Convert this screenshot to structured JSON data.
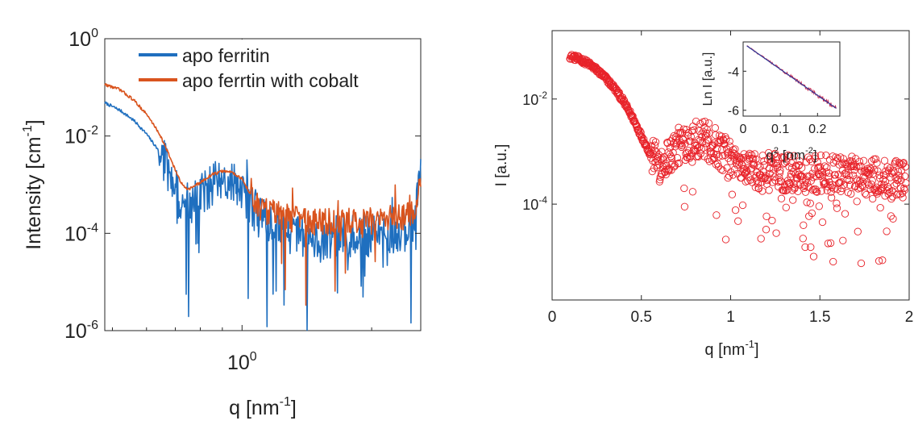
{
  "chart_data": [
    {
      "type": "line",
      "xscale": "log",
      "yscale": "log",
      "xlim": [
        0.48,
        2.6
      ],
      "ylim": [
        1e-06,
        1
      ],
      "xticks": [
        {
          "value": 1,
          "base": "10",
          "exp": "0"
        }
      ],
      "yticks": [
        {
          "value": 1,
          "base": "10",
          "exp": "0"
        },
        {
          "value": 0.01,
          "base": "10",
          "exp": "-2"
        },
        {
          "value": 0.0001,
          "base": "10",
          "exp": "-4"
        },
        {
          "value": 1e-06,
          "base": "10",
          "exp": "-6"
        }
      ],
      "xlabel": {
        "text": "q [nm",
        "sup": "-1",
        "close": "]"
      },
      "ylabel": {
        "text": "Intensity [cm",
        "sup": "-1",
        "close": "]"
      },
      "legend_position": "top-right",
      "series": [
        {
          "name": "apo ferritin",
          "color": "#1f6fbf",
          "noise_start_x": 0.64,
          "noise_spread": 0.9,
          "x": [
            0.48,
            0.52,
            0.56,
            0.6,
            0.64,
            0.67,
            0.7,
            0.72,
            0.75,
            0.8,
            0.85,
            0.9,
            0.95,
            1.0,
            1.05,
            1.1,
            1.2,
            1.3,
            1.4,
            1.5,
            1.6,
            1.8,
            2.0,
            2.2,
            2.4,
            2.5,
            2.6
          ],
          "y": [
            0.048,
            0.034,
            0.021,
            0.011,
            0.005,
            0.0022,
            0.0009,
            0.0004,
            0.0003,
            0.0006,
            0.001,
            0.0012,
            0.0011,
            0.0008,
            0.0004,
            0.0002,
            0.00015,
            0.0001,
            8e-05,
            7e-05,
            8e-05,
            9e-05,
            9e-05,
            0.0001,
            0.00012,
            0.0002,
            0.002
          ]
        },
        {
          "name": "apo ferrtin with cobalt",
          "color": "#d9541e",
          "noise_start_x": 1.05,
          "noise_spread": 0.55,
          "x": [
            0.48,
            0.52,
            0.56,
            0.6,
            0.64,
            0.67,
            0.7,
            0.72,
            0.75,
            0.8,
            0.85,
            0.9,
            0.95,
            1.0,
            1.05,
            1.1,
            1.2,
            1.3,
            1.4,
            1.5,
            1.6,
            1.8,
            2.0,
            2.2,
            2.4,
            2.5,
            2.6
          ],
          "y": [
            0.115,
            0.09,
            0.055,
            0.028,
            0.012,
            0.005,
            0.002,
            0.0011,
            0.0008,
            0.0011,
            0.0016,
            0.0019,
            0.0018,
            0.0013,
            0.0006,
            0.0003,
            0.00025,
            0.0002,
            0.00018,
            0.00017,
            0.00017,
            0.00018,
            0.00018,
            0.0002,
            0.00022,
            0.0003,
            0.0009
          ]
        }
      ]
    },
    {
      "type": "scatter",
      "xscale": "linear",
      "yscale": "log",
      "xlim": [
        0,
        2
      ],
      "ylim": [
        1.5e-06,
        0.2
      ],
      "xticks": [
        {
          "value": 0,
          "label": "0"
        },
        {
          "value": 0.5,
          "label": "0.5"
        },
        {
          "value": 1,
          "label": "1"
        },
        {
          "value": 1.5,
          "label": "1.5"
        },
        {
          "value": 2,
          "label": "2"
        }
      ],
      "yticks": [
        {
          "value": 0.01,
          "base": "10",
          "exp": "-2"
        },
        {
          "value": 0.0001,
          "base": "10",
          "exp": "-4"
        }
      ],
      "xlabel": {
        "text": "q [nm",
        "sup": "-1",
        "close": "]"
      },
      "ylabel": {
        "text": "I [a.u.]"
      },
      "marker": "open-circle",
      "color": "#e8232a",
      "x_range": [
        0.1,
        2.0
      ],
      "noise_start_x": 0.55,
      "noise_spread": 1.2,
      "curve": {
        "x": [
          0.1,
          0.15,
          0.2,
          0.25,
          0.3,
          0.35,
          0.4,
          0.45,
          0.5,
          0.55,
          0.6,
          0.65,
          0.7,
          0.75,
          0.8,
          0.85,
          0.9,
          0.95,
          1.0,
          1.1,
          1.2,
          1.3,
          1.5,
          1.7,
          2.0
        ],
        "y": [
          0.065,
          0.058,
          0.048,
          0.036,
          0.025,
          0.016,
          0.009,
          0.0045,
          0.002,
          0.0009,
          0.0006,
          0.0008,
          0.0012,
          0.0016,
          0.0018,
          0.0017,
          0.0014,
          0.001,
          0.0007,
          0.0005,
          0.00042,
          0.0004,
          0.00038,
          0.00035,
          0.0003
        ]
      },
      "inset": {
        "type": "line",
        "xlim": [
          0,
          0.26
        ],
        "ylim": [
          -6.3,
          -2.5
        ],
        "xticks": [
          {
            "value": 0,
            "label": "0"
          },
          {
            "value": 0.1,
            "label": "0.1"
          },
          {
            "value": 0.2,
            "label": "0.2"
          }
        ],
        "yticks": [
          {
            "value": -4,
            "label": "-4"
          },
          {
            "value": -6,
            "label": "-6"
          }
        ],
        "xlabel": {
          "text": "q",
          "sup": "2",
          "rest": " [nm",
          "sup2": "-2",
          "close": "]"
        },
        "ylabel": {
          "text": "Ln I [a.u.]"
        },
        "data_color": "#c8234a",
        "fit_color": "#2a3a9a",
        "fit": {
          "x": [
            0.01,
            0.25
          ],
          "y": [
            -2.7,
            -5.9
          ]
        }
      }
    }
  ]
}
